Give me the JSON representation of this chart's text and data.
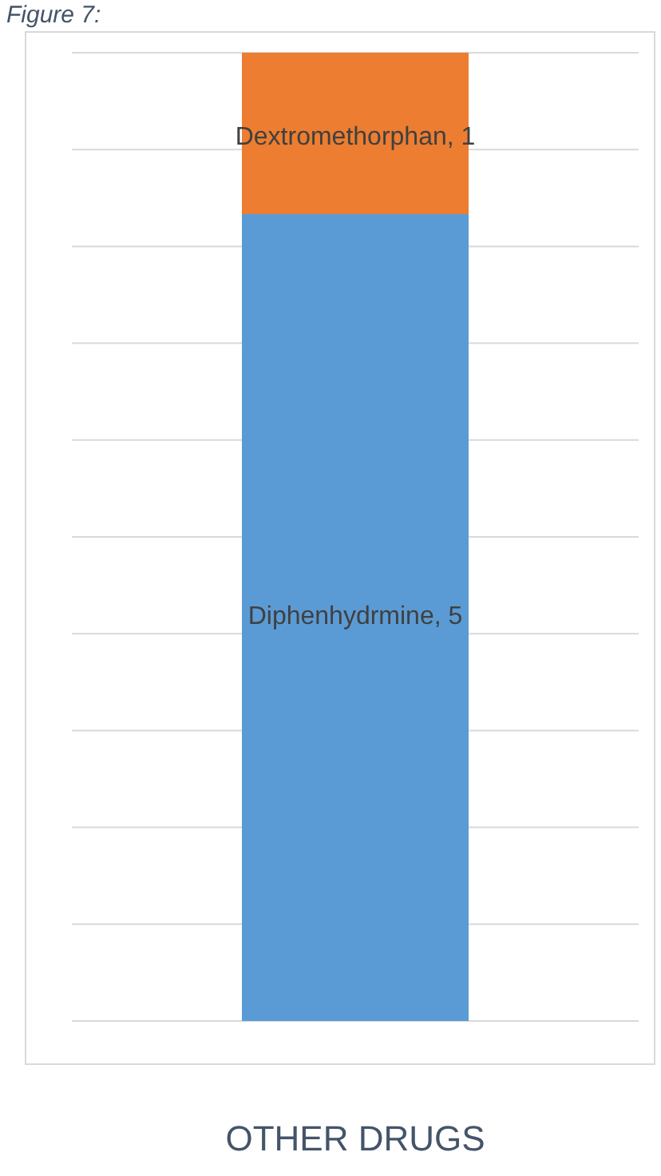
{
  "chart_data": {
    "type": "bar",
    "title": "Figure 7:",
    "stacked": true,
    "categories": [
      "OTHER DRUGS"
    ],
    "series": [
      {
        "color": "#5b9bd5",
        "values": [
          5
        ],
        "value_labels": [
          "Diphenhydrmine, 5"
        ]
      },
      {
        "color": "#ed7d31",
        "values": [
          1
        ],
        "value_labels": [
          "Dextromethorphan, 1"
        ]
      }
    ],
    "grid": "y",
    "tick_labels": "x",
    "legend": false
  }
}
